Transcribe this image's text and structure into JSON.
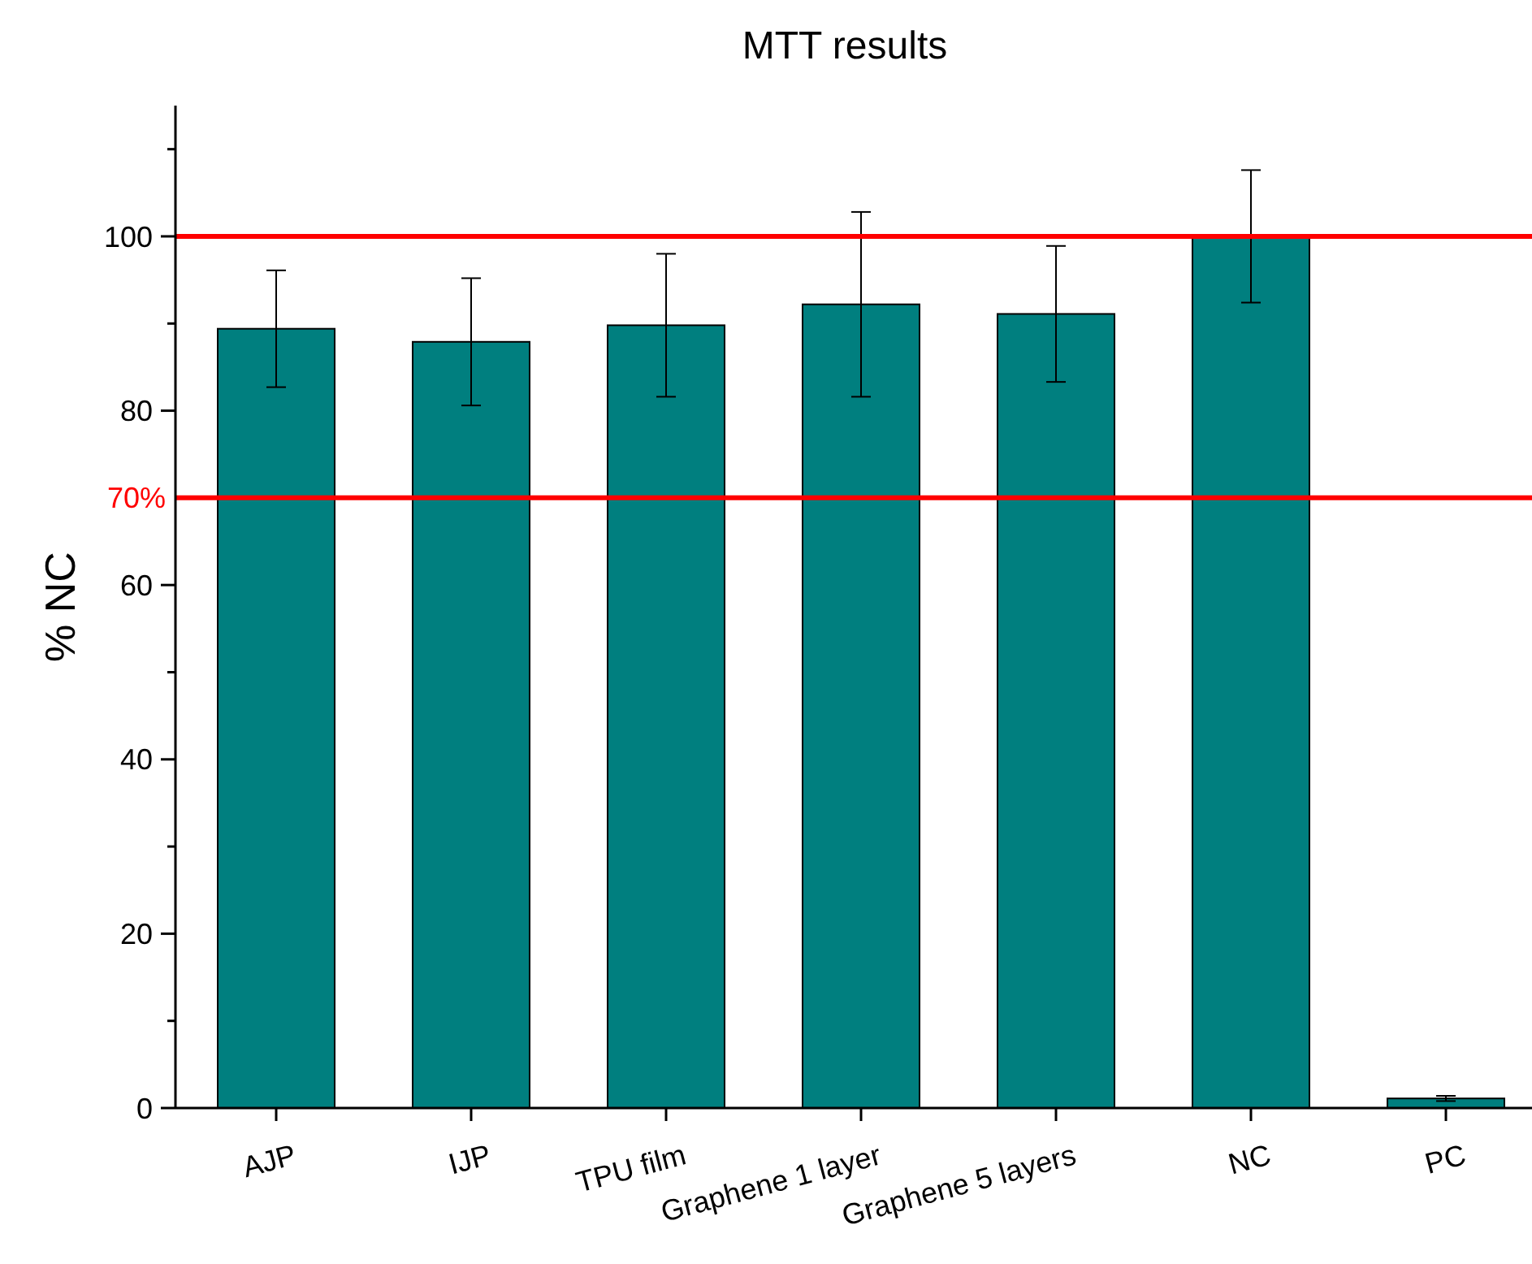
{
  "chart_data": {
    "type": "bar",
    "title": "MTT results",
    "ylabel": "% NC",
    "categories": [
      "AJP",
      "IJP",
      "TPU film",
      "Graphene 1 layer",
      "Graphene 5 layers",
      "NC",
      "PC"
    ],
    "values": [
      89.4,
      87.9,
      89.8,
      92.2,
      91.1,
      100,
      1.1
    ],
    "errors": [
      6.7,
      7.3,
      8.2,
      10.6,
      7.8,
      7.6,
      0.3
    ],
    "color": "#007f7f",
    "ylim": [
      0,
      115
    ],
    "yticks": [
      0,
      {
        "value": 10,
        "label": null
      },
      20,
      {
        "value": 30,
        "label": null
      },
      40,
      {
        "value": 50,
        "label": null
      },
      60,
      80,
      {
        "value": 90,
        "label": null
      },
      100,
      {
        "value": 110,
        "label": null
      }
    ],
    "ref_lines": [
      {
        "axis": "y",
        "value": 100,
        "color": "#ff0000"
      },
      {
        "axis": "y",
        "value": 70,
        "label": "70%",
        "color": "#ff0000"
      }
    ],
    "grid": false
  }
}
